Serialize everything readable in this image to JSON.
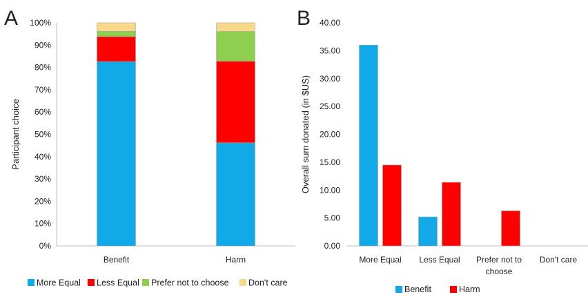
{
  "chart_data": [
    {
      "panel": "A",
      "type": "bar",
      "stacked": true,
      "ylabel": "Participant choice",
      "ylim": [
        0,
        100
      ],
      "yticks": [
        "0%",
        "10%",
        "20%",
        "30%",
        "40%",
        "50%",
        "60%",
        "70%",
        "80%",
        "90%",
        "100%"
      ],
      "categories": [
        "Benefit",
        "Harm"
      ],
      "series": [
        {
          "name": "More Equal",
          "color": "#12a9e8",
          "values": [
            82.6,
            46.2
          ]
        },
        {
          "name": "Less Equal",
          "color": "#ff0000",
          "values": [
            11.2,
            36.6
          ]
        },
        {
          "name": "Prefer not to choose",
          "color": "#8fcf50",
          "values": [
            2.4,
            13.3
          ]
        },
        {
          "name": "Don't care",
          "color": "#f8d889",
          "values": [
            3.8,
            3.9
          ]
        }
      ],
      "legend_position": "bottom"
    },
    {
      "panel": "B",
      "type": "bar",
      "ylabel": "Overall sum donated (in $US)",
      "ylim": [
        0,
        40
      ],
      "yticks": [
        "0.00",
        "5.00",
        "10.00",
        "15.00",
        "20.00",
        "25.00",
        "30.00",
        "35.00",
        "40.00"
      ],
      "categories": [
        [
          "More Equal"
        ],
        [
          "Less Equal"
        ],
        [
          "Prefer not to",
          "choose"
        ],
        [
          "Don't care"
        ]
      ],
      "series": [
        {
          "name": "Benefit",
          "color": "#12a9e8",
          "values": [
            36.0,
            5.2,
            0,
            0
          ]
        },
        {
          "name": "Harm",
          "color": "#ff0000",
          "values": [
            14.5,
            11.4,
            6.3,
            0
          ]
        }
      ],
      "legend_position": "bottom"
    }
  ]
}
